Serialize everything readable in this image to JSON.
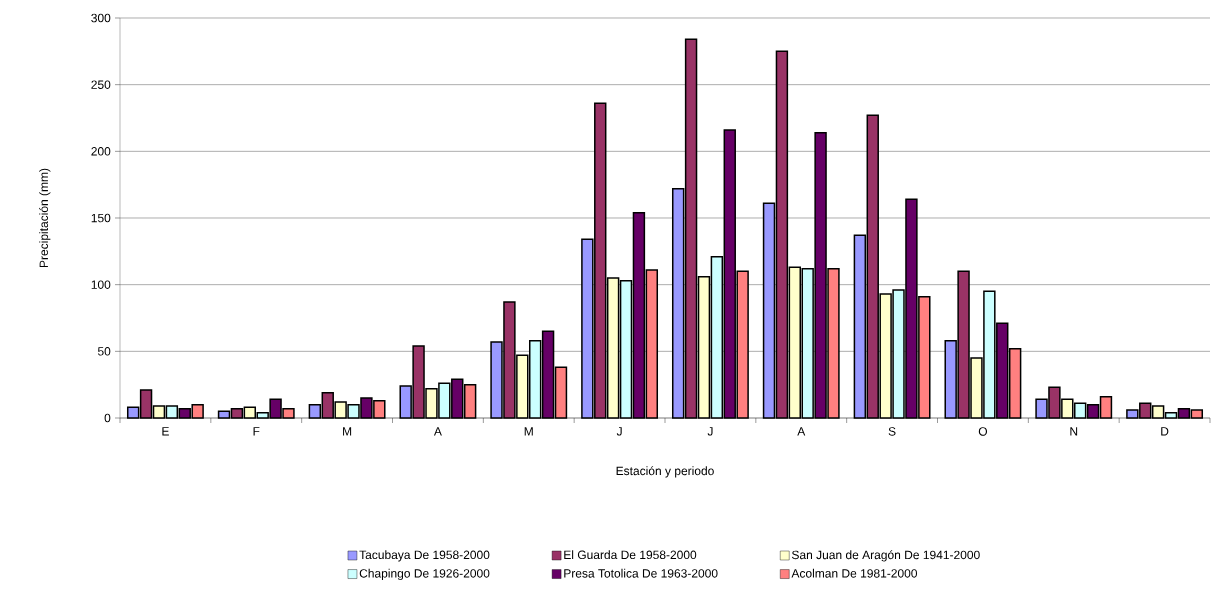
{
  "chart_data": {
    "type": "bar",
    "xlabel": "Estación y periodo",
    "ylabel": "Precipitación (mm)",
    "categories": [
      "E",
      "F",
      "M",
      "A",
      "M",
      "J",
      "J",
      "A",
      "S",
      "O",
      "N",
      "D"
    ],
    "series": [
      {
        "name": "Tacubaya De 1958-2000",
        "color": "#9999ff",
        "values": [
          8,
          5,
          10,
          24,
          57,
          134,
          172,
          161,
          137,
          58,
          14,
          6
        ]
      },
      {
        "name": "El Guarda De 1958-2000",
        "color": "#993366",
        "values": [
          21,
          7,
          19,
          54,
          87,
          236,
          284,
          275,
          227,
          110,
          23,
          11
        ]
      },
      {
        "name": "San Juan de Aragón De 1941-2000",
        "color": "#ffffcc",
        "values": [
          9,
          8,
          12,
          22,
          47,
          105,
          106,
          113,
          93,
          45,
          14,
          9
        ]
      },
      {
        "name": "Chapingo De 1926-2000",
        "color": "#ccffff",
        "values": [
          9,
          4,
          10,
          26,
          58,
          103,
          121,
          112,
          96,
          95,
          11,
          4
        ]
      },
      {
        "name": "Presa Totolica De 1963-2000",
        "color": "#660066",
        "values": [
          7,
          14,
          15,
          29,
          65,
          154,
          216,
          214,
          164,
          71,
          10,
          7
        ]
      },
      {
        "name": "Acolman De 1981-2000",
        "color": "#ff8080",
        "values": [
          10,
          7,
          13,
          25,
          38,
          111,
          110,
          112,
          91,
          52,
          16,
          6
        ]
      }
    ],
    "ylim": [
      0,
      300
    ],
    "yticks": [
      0,
      50,
      100,
      150,
      200,
      250,
      300
    ],
    "grid": "y",
    "legend": "bottom"
  }
}
